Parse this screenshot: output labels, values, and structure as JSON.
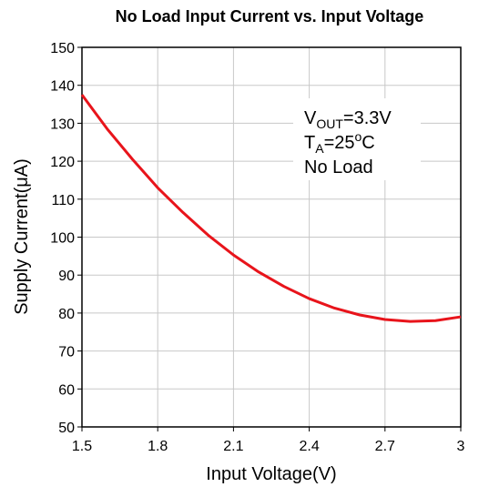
{
  "chart_data": {
    "type": "line",
    "title": "No Load Input Current vs. Input Voltage",
    "x_label": "Input Voltage(V)",
    "y_label": "Supply Current(μA)",
    "x": [
      1.5,
      1.6,
      1.7,
      1.8,
      1.9,
      2.0,
      2.1,
      2.2,
      2.3,
      2.4,
      2.5,
      2.6,
      2.7,
      2.8,
      2.9,
      3.0
    ],
    "series": [
      {
        "name": "Supply Current",
        "color": "#e8141b",
        "values": [
          137.5,
          128.5,
          120.5,
          113,
          106.5,
          100.5,
          95.3,
          90.8,
          87,
          83.8,
          81.3,
          79.5,
          78.3,
          77.8,
          78,
          79
        ]
      }
    ],
    "xlim": [
      1.5,
      3
    ],
    "xticks": [
      1.5,
      1.8,
      2.1,
      2.4,
      2.7,
      3
    ],
    "ylim": [
      50,
      150
    ],
    "yticks": [
      50,
      60,
      70,
      80,
      90,
      100,
      110,
      120,
      130,
      140,
      150
    ],
    "grid": true,
    "annotation_lines": [
      [
        {
          "text": "V"
        },
        {
          "text": "OUT",
          "shift": "sub"
        },
        {
          "text": "=3.3V"
        }
      ],
      [
        {
          "text": "T"
        },
        {
          "text": "A",
          "shift": "sub"
        },
        {
          "text": "=25"
        },
        {
          "text": "o",
          "shift": "super"
        },
        {
          "text": "C"
        }
      ],
      [
        {
          "text": "No Load"
        }
      ]
    ]
  }
}
